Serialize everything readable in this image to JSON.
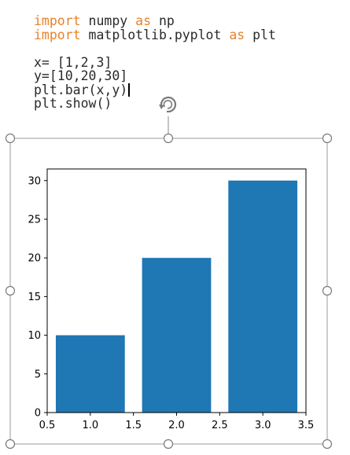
{
  "code": {
    "line1": {
      "kw1": "import",
      "mid": " numpy ",
      "kw2": "as",
      "end": " np"
    },
    "line2": {
      "kw1": "import",
      "mid": " matplotlib.pyplot ",
      "kw2": "as",
      "end": " plt"
    },
    "line3": "x= [1,2,3]",
    "line4": "y=[10,20,30]",
    "line5": "plt.bar(x,y)",
    "line6": "plt.show()"
  },
  "colors": {
    "keyword": "#e8822a",
    "bar": "#1f77b4",
    "handle": "#888888"
  },
  "icons": {
    "rotate_handle": "rotate-icon"
  },
  "chart_data": {
    "type": "bar",
    "categories": [
      1,
      2,
      3
    ],
    "values": [
      10,
      20,
      30
    ],
    "bar_width": 0.8,
    "xlim": [
      0.5,
      3.5
    ],
    "ylim": [
      0,
      31.5
    ],
    "xticks": [
      "0.5",
      "1.0",
      "1.5",
      "2.0",
      "2.5",
      "3.0",
      "3.5"
    ],
    "yticks": [
      "0",
      "5",
      "10",
      "15",
      "20",
      "25",
      "30"
    ],
    "title": "",
    "xlabel": "",
    "ylabel": "",
    "grid": false,
    "color": "#1f77b4"
  }
}
